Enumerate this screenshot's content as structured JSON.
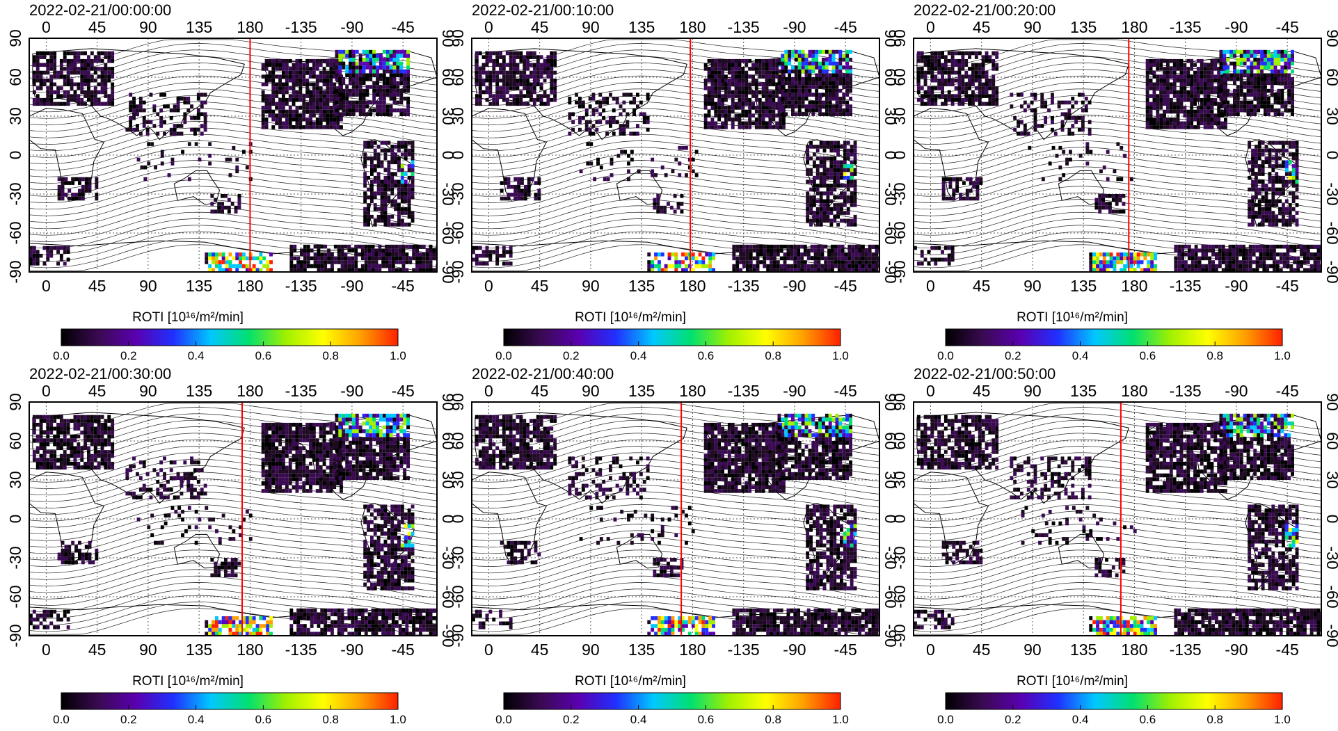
{
  "colors": {
    "roti_scale": [
      "#000000",
      "#3a0a52",
      "#5a00b0",
      "#2030ff",
      "#00c8ff",
      "#00e070",
      "#a0f000",
      "#ffff00",
      "#ffa000",
      "#ff2000"
    ],
    "magnetic_meridian": "#ff0000",
    "continent_dark": "#1e0a22",
    "grid_line": "#555555"
  },
  "chart_data": [
    {
      "type": "heatmap",
      "title": "2022-02-21/00:00:00",
      "x_ticks_top": [
        "0",
        "45",
        "90",
        "135",
        "180",
        "-135",
        "-90",
        "-45"
      ],
      "x_ticks_bottom": [
        "0",
        "45",
        "90",
        "135",
        "180",
        "-135",
        "-90",
        "-45"
      ],
      "y_ticks_left": [
        "90",
        "60",
        "30",
        "0",
        "-30",
        "-60",
        "-90"
      ],
      "y_ticks_right": [
        "90",
        "60",
        "30",
        "0",
        "-30",
        "-60",
        "-90"
      ],
      "xlim": [
        -15,
        345
      ],
      "ylim": [
        -90,
        90
      ],
      "colorbar": {
        "label": "ROTI  [10¹⁶/m²/min]",
        "ticks": [
          "0.0",
          "0.2",
          "0.4",
          "0.6",
          "0.8",
          "1.0"
        ],
        "range": [
          0.0,
          1.0
        ]
      },
      "red_line_lon": 180
    },
    {
      "type": "heatmap",
      "title": "2022-02-21/00:10:00",
      "x_ticks_top": [
        "0",
        "45",
        "90",
        "135",
        "180",
        "-135",
        "-90",
        "-45"
      ],
      "x_ticks_bottom": [
        "0",
        "45",
        "90",
        "135",
        "180",
        "-135",
        "-90",
        "-45"
      ],
      "y_ticks_left": [
        "90",
        "60",
        "30",
        "0",
        "-30",
        "-60",
        "-90"
      ],
      "y_ticks_right": [
        "90",
        "60",
        "30",
        "0",
        "-30",
        "-60",
        "-90"
      ],
      "xlim": [
        -15,
        345
      ],
      "ylim": [
        -90,
        90
      ],
      "colorbar": {
        "label": "ROTI  [10¹⁶/m²/min]",
        "ticks": [
          "0.0",
          "0.2",
          "0.4",
          "0.6",
          "0.8",
          "1.0"
        ],
        "range": [
          0.0,
          1.0
        ]
      },
      "red_line_lon": 178
    },
    {
      "type": "heatmap",
      "title": "2022-02-21/00:20:00",
      "x_ticks_top": [
        "0",
        "45",
        "90",
        "135",
        "180",
        "-135",
        "-90",
        "-45"
      ],
      "x_ticks_bottom": [
        "0",
        "45",
        "90",
        "135",
        "180",
        "-135",
        "-90",
        "-45"
      ],
      "y_ticks_left": [
        "90",
        "60",
        "30",
        "0",
        "-30",
        "-60",
        "-90"
      ],
      "y_ticks_right": [
        "90",
        "60",
        "30",
        "0",
        "-30",
        "-60",
        "-90"
      ],
      "xlim": [
        -15,
        345
      ],
      "ylim": [
        -90,
        90
      ],
      "colorbar": {
        "label": "ROTI  [10¹⁶/m²/min]",
        "ticks": [
          "0.0",
          "0.2",
          "0.4",
          "0.6",
          "0.8",
          "1.0"
        ],
        "range": [
          0.0,
          1.0
        ]
      },
      "red_line_lon": 175
    },
    {
      "type": "heatmap",
      "title": "2022-02-21/00:30:00",
      "x_ticks_top": [
        "0",
        "45",
        "90",
        "135",
        "180",
        "-135",
        "-90",
        "-45"
      ],
      "x_ticks_bottom": [
        "0",
        "45",
        "90",
        "135",
        "180",
        "-135",
        "-90",
        "-45"
      ],
      "y_ticks_left": [
        "90",
        "60",
        "30",
        "0",
        "-30",
        "-60",
        "-90"
      ],
      "y_ticks_right": [
        "90",
        "60",
        "30",
        "0",
        "-30",
        "-60",
        "-90"
      ],
      "xlim": [
        -15,
        345
      ],
      "ylim": [
        -90,
        90
      ],
      "colorbar": {
        "label": "ROTI  [10¹⁶/m²/min]",
        "ticks": [
          "0.0",
          "0.2",
          "0.4",
          "0.6",
          "0.8",
          "1.0"
        ],
        "range": [
          0.0,
          1.0
        ]
      },
      "red_line_lon": 173
    },
    {
      "type": "heatmap",
      "title": "2022-02-21/00:40:00",
      "x_ticks_top": [
        "0",
        "45",
        "90",
        "135",
        "180",
        "-135",
        "-90",
        "-45"
      ],
      "x_ticks_bottom": [
        "0",
        "45",
        "90",
        "135",
        "180",
        "-135",
        "-90",
        "-45"
      ],
      "y_ticks_left": [
        "90",
        "60",
        "30",
        "0",
        "-30",
        "-60",
        "-90"
      ],
      "y_ticks_right": [
        "90",
        "60",
        "30",
        "0",
        "-30",
        "-60",
        "-90"
      ],
      "xlim": [
        -15,
        345
      ],
      "ylim": [
        -90,
        90
      ],
      "colorbar": {
        "label": "ROTI  [10¹⁶/m²/min]",
        "ticks": [
          "0.0",
          "0.2",
          "0.4",
          "0.6",
          "0.8",
          "1.0"
        ],
        "range": [
          0.0,
          1.0
        ]
      },
      "red_line_lon": 170
    },
    {
      "type": "heatmap",
      "title": "2022-02-21/00:50:00",
      "x_ticks_top": [
        "0",
        "45",
        "90",
        "135",
        "180",
        "-135",
        "-90",
        "-45"
      ],
      "x_ticks_bottom": [
        "0",
        "45",
        "90",
        "135",
        "180",
        "-135",
        "-90",
        "-45"
      ],
      "y_ticks_left": [
        "90",
        "60",
        "30",
        "0",
        "-30",
        "-60",
        "-90"
      ],
      "y_ticks_right": [
        "90",
        "60",
        "30",
        "0",
        "-30",
        "-60",
        "-90"
      ],
      "xlim": [
        -15,
        345
      ],
      "ylim": [
        -90,
        90
      ],
      "colorbar": {
        "label": "ROTI  [10¹⁶/m²/min]",
        "ticks": [
          "0.0",
          "0.2",
          "0.4",
          "0.6",
          "0.8",
          "1.0"
        ],
        "range": [
          0.0,
          1.0
        ]
      },
      "red_line_lon": 168
    }
  ]
}
